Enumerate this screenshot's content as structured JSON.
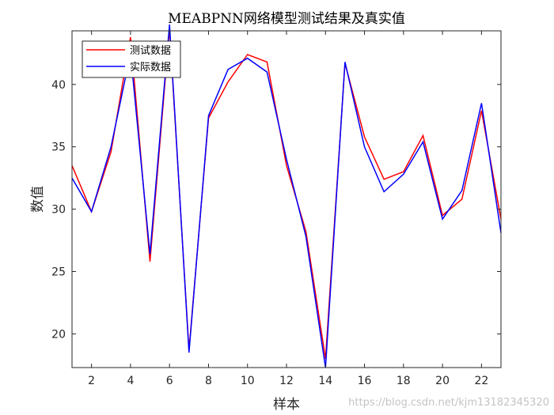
{
  "chart_data": {
    "type": "line",
    "title": "MEABPNN网络模型测试结果及真实值",
    "xlabel": "样本",
    "ylabel": "数值",
    "xlim": [
      1,
      23
    ],
    "ylim": [
      17.3,
      44.3
    ],
    "xticks": [
      2,
      4,
      6,
      8,
      10,
      12,
      14,
      16,
      18,
      20,
      22
    ],
    "yticks": [
      20,
      25,
      30,
      35,
      40
    ],
    "x": [
      1,
      2,
      3,
      4,
      5,
      6,
      7,
      8,
      9,
      10,
      11,
      12,
      13,
      14,
      15,
      16,
      17,
      18,
      19,
      20,
      21,
      22,
      23
    ],
    "legend_position": "top-left",
    "series": [
      {
        "name": "测试数据",
        "color": "#ff0000",
        "values": [
          33.5,
          29.8,
          34.6,
          43.8,
          25.8,
          44.5,
          18.7,
          37.3,
          40.2,
          42.4,
          41.8,
          33.5,
          28.2,
          18.0,
          41.7,
          35.8,
          32.4,
          33.0,
          35.9,
          29.5,
          30.8,
          37.9,
          29.2
        ]
      },
      {
        "name": "实际数据",
        "color": "#0000ff",
        "values": [
          32.5,
          29.8,
          35.0,
          42.5,
          26.4,
          44.8,
          18.5,
          37.5,
          41.2,
          42.1,
          41.0,
          34.0,
          27.8,
          17.3,
          41.8,
          35.0,
          31.4,
          32.8,
          35.4,
          29.2,
          31.5,
          38.5,
          28.1
        ]
      }
    ]
  },
  "watermark": "https://blog.csdn.net/kjm13182345320"
}
